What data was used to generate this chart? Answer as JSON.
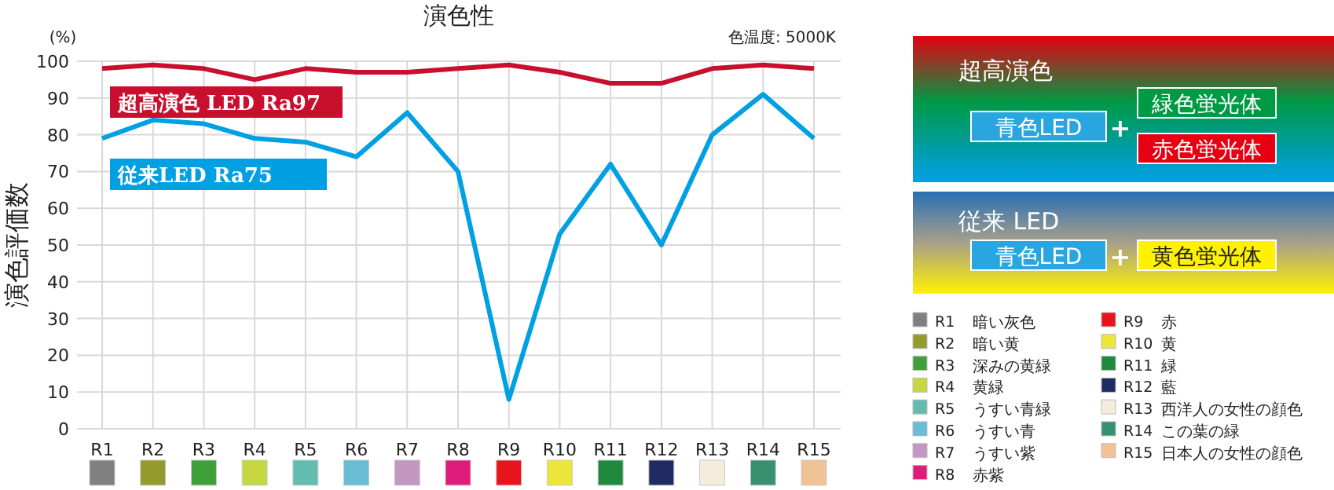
{
  "chart_data": {
    "type": "line",
    "title": "演色性",
    "ylabel": "演色評価数",
    "categories": [
      "R1",
      "R2",
      "R3",
      "R4",
      "R5",
      "R6",
      "R7",
      "R8",
      "R9",
      "R10",
      "R11",
      "R12",
      "R13",
      "R14",
      "R15"
    ],
    "series": [
      {
        "name": "超高演色 LED Ra97",
        "color": "#c8102e",
        "values": [
          98,
          99,
          98,
          95,
          98,
          97,
          97,
          98,
          99,
          97,
          94,
          94,
          98,
          99,
          98
        ]
      },
      {
        "name": "従来LED Ra75",
        "color": "#00a0e3",
        "values": [
          79,
          84,
          83,
          79,
          78,
          74,
          86,
          70,
          8,
          53,
          72,
          50,
          80,
          91,
          79
        ]
      }
    ],
    "ylim": [
      0,
      100
    ],
    "yticks": [
      0,
      10,
      20,
      30,
      40,
      50,
      60,
      70,
      80,
      90,
      100
    ],
    "grid": true,
    "marker": "none",
    "line_style": "solid",
    "annotations": [
      "(%)",
      "色温度: 5000K",
      "超高演色",
      "青色LED",
      "+",
      "緑色蛍光体",
      "赤色蛍光体",
      "従来 LED",
      "青色LED",
      "+",
      "黄色蛍光体",
      "暗い灰色",
      "暗い黄",
      "深みの黄緑",
      "黄緑",
      "うすい青緑",
      "うすい青",
      "うすい紫",
      "赤紫",
      "赤",
      "黄",
      "緑",
      "藍",
      "西洋人の女性の顔色",
      "この葉の緑",
      "日本人の女性の顔色"
    ]
  }
}
